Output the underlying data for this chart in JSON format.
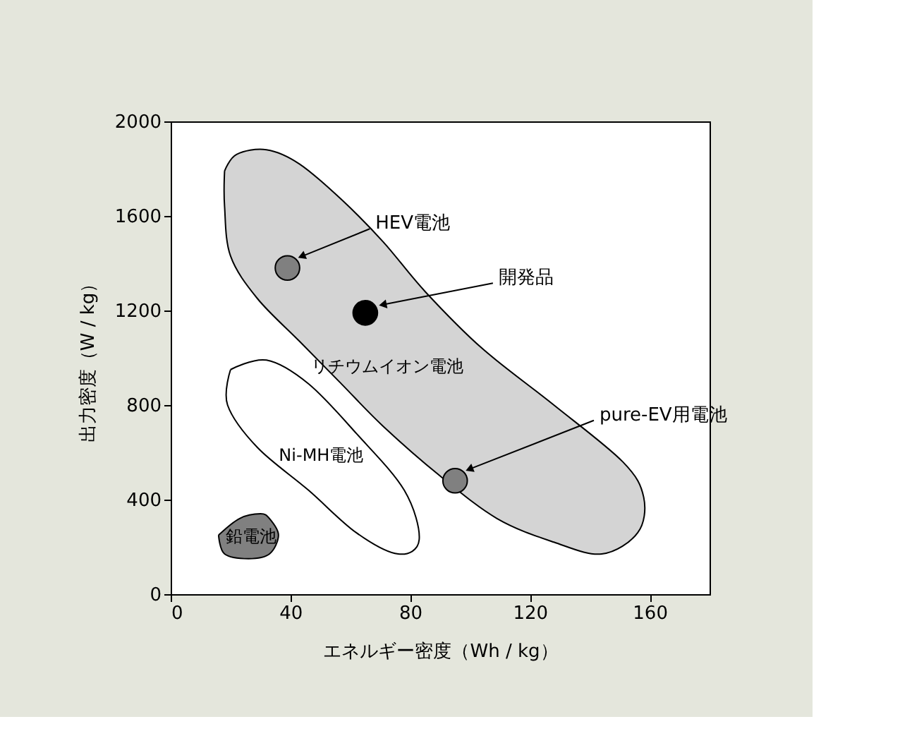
{
  "chart_data": {
    "type": "scatter",
    "xlabel": "エネルギー密度（Wh / kg）",
    "ylabel": "出力密度（W / kg）",
    "xlim": [
      0,
      180
    ],
    "xticks": [
      0,
      40,
      80,
      120,
      160
    ],
    "ylim": [
      0,
      2000
    ],
    "yticks": [
      0,
      400,
      800,
      1200,
      1600,
      2000
    ],
    "grid": false,
    "series": [
      {
        "name": "リチウムイオン電池",
        "type": "area",
        "color": "#d4d4d4",
        "x": [
          18,
          22,
          32,
          43,
          57,
          71,
          85,
          104,
          128,
          151,
          158,
          156,
          144,
          128,
          109,
          90,
          71,
          57,
          43,
          29,
          20,
          18,
          18
        ],
        "values": [
          1790,
          1860,
          1880,
          1820,
          1670,
          1490,
          1280,
          1040,
          800,
          560,
          410,
          260,
          170,
          220,
          320,
          500,
          710,
          890,
          1070,
          1250,
          1430,
          1640,
          1790
        ]
      },
      {
        "name": "Ni-MH電池",
        "type": "area",
        "color": "#ffffff",
        "x": [
          20,
          32,
          46,
          62,
          78,
          83,
          76,
          62,
          46,
          29,
          19,
          20
        ],
        "values": [
          950,
          990,
          890,
          680,
          440,
          230,
          170,
          260,
          440,
          620,
          800,
          950
        ]
      },
      {
        "name": "鉛電池",
        "type": "area",
        "color": "#808080",
        "x": [
          16,
          23,
          30,
          33,
          36,
          33,
          26,
          18,
          16
        ],
        "values": [
          250,
          320,
          340,
          320,
          250,
          170,
          150,
          170,
          250
        ]
      },
      {
        "marker": "circle",
        "x": [
          39,
          65,
          95
        ],
        "values": [
          1380,
          1190,
          480
        ],
        "colors": [
          "#808080",
          "#000000",
          "#808080"
        ]
      }
    ],
    "annotations": [
      {
        "text": "HEV電池",
        "x": 42,
        "y": 1420
      },
      {
        "text": "開発品",
        "x": 69,
        "y": 1220
      },
      {
        "text": "pure-EV用電池",
        "x": 98,
        "y": 520
      }
    ]
  }
}
